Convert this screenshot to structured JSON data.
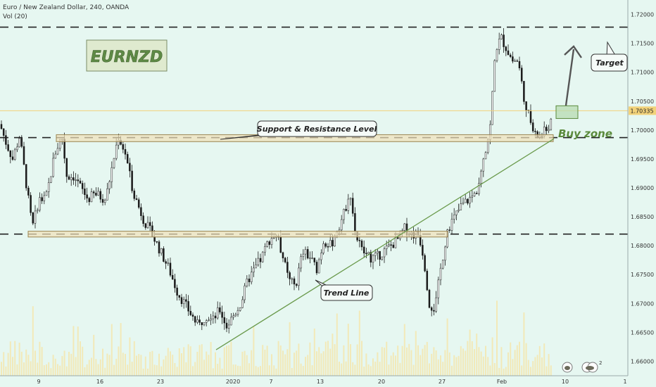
{
  "header": {
    "symbol_line": "Euro / New Zealand Dollar, 240, OANDA",
    "volume_line": "Vol (20)"
  },
  "labels": {
    "logo": "EURNZD",
    "support_resistance": "Support & Resistance Level",
    "trend_line": "Trend Line",
    "target": "Target",
    "buy_zone": "Buy zone",
    "price_tag": "1.70335"
  },
  "icons": [
    "snapshot-icon",
    "compare-icon"
  ],
  "icon_badge": "2",
  "colors": {
    "background": "#e6f7f1",
    "candle": "#1a1a1a",
    "volume": "#f2e9b8",
    "zone_fill": "#f0dfb8",
    "zone_stroke": "#9a8450",
    "trend": "#6a9a4c",
    "buy_zone": "#5a8a3c",
    "logo_text": "#5e8a45",
    "price_line": "#f2d27a"
  },
  "chart_data": {
    "type": "candlestick",
    "y_axis": {
      "range": [
        1.6575,
        1.7225
      ],
      "ticks": [
        "1.72000",
        "1.71500",
        "1.71000",
        "1.70500",
        "1.70000",
        "1.69500",
        "1.69000",
        "1.68500",
        "1.68000",
        "1.67500",
        "1.67000",
        "1.66500",
        "1.66000"
      ]
    },
    "x_axis": {
      "ticks": [
        "9",
        "16",
        "23",
        "2020",
        "7",
        "13",
        "20",
        "27",
        "Feb",
        "10",
        "1"
      ]
    },
    "levels": {
      "target": 1.7178,
      "upper_support": 1.6987,
      "lower_support": 1.682,
      "current_price": 1.70335
    },
    "zones": [
      {
        "name": "support-resistance-zone",
        "from": 1.698,
        "to": 1.6992
      },
      {
        "name": "lower-support-zone",
        "from": 1.6815,
        "to": 1.6825
      },
      {
        "name": "buy-zone-box",
        "from": 1.702,
        "to": 1.7042
      }
    ],
    "trend_line": {
      "from": 1.662,
      "to": 1.6985
    },
    "path": [
      [
        0,
        1.701
      ],
      [
        8,
        1.698
      ],
      [
        18,
        1.695
      ],
      [
        28,
        1.699
      ],
      [
        38,
        1.69
      ],
      [
        46,
        1.683
      ],
      [
        55,
        1.688
      ],
      [
        65,
        1.688
      ],
      [
        78,
        1.696
      ],
      [
        88,
        1.699
      ],
      [
        95,
        1.692
      ],
      [
        105,
        1.692
      ],
      [
        115,
        1.69
      ],
      [
        125,
        1.688
      ],
      [
        135,
        1.689
      ],
      [
        150,
        1.688
      ],
      [
        160,
        1.694
      ],
      [
        168,
        1.699
      ],
      [
        178,
        1.696
      ],
      [
        188,
        1.69
      ],
      [
        196,
        1.687
      ],
      [
        206,
        1.684
      ],
      [
        216,
        1.682
      ],
      [
        228,
        1.679
      ],
      [
        240,
        1.676
      ],
      [
        252,
        1.672
      ],
      [
        262,
        1.67
      ],
      [
        272,
        1.668
      ],
      [
        282,
        1.666
      ],
      [
        292,
        1.668
      ],
      [
        302,
        1.667
      ],
      [
        312,
        1.669
      ],
      [
        322,
        1.666
      ],
      [
        332,
        1.668
      ],
      [
        342,
        1.67
      ],
      [
        352,
        1.674
      ],
      [
        362,
        1.676
      ],
      [
        372,
        1.678
      ],
      [
        382,
        1.681
      ],
      [
        392,
        1.682
      ],
      [
        400,
        1.679
      ],
      [
        410,
        1.674
      ],
      [
        420,
        1.673
      ],
      [
        430,
        1.679
      ],
      [
        440,
        1.678
      ],
      [
        450,
        1.676
      ],
      [
        460,
        1.681
      ],
      [
        470,
        1.68
      ],
      [
        480,
        1.683
      ],
      [
        490,
        1.686
      ],
      [
        497,
        1.69
      ],
      [
        505,
        1.682
      ],
      [
        515,
        1.679
      ],
      [
        525,
        1.678
      ],
      [
        535,
        1.678
      ],
      [
        545,
        1.679
      ],
      [
        555,
        1.68
      ],
      [
        565,
        1.681
      ],
      [
        575,
        1.683
      ],
      [
        585,
        1.682
      ],
      [
        595,
        1.682
      ],
      [
        602,
        1.678
      ],
      [
        610,
        1.67
      ],
      [
        618,
        1.669
      ],
      [
        626,
        1.676
      ],
      [
        636,
        1.683
      ],
      [
        646,
        1.685
      ],
      [
        656,
        1.687
      ],
      [
        666,
        1.688
      ],
      [
        676,
        1.689
      ],
      [
        686,
        1.695
      ],
      [
        696,
        1.7
      ],
      [
        704,
        1.714
      ],
      [
        712,
        1.716
      ],
      [
        720,
        1.714
      ],
      [
        728,
        1.712
      ],
      [
        736,
        1.712
      ],
      [
        744,
        1.706
      ],
      [
        752,
        1.702
      ],
      [
        760,
        1.699
      ],
      [
        768,
        1.699
      ],
      [
        776,
        1.7
      ],
      [
        786,
        1.702
      ]
    ]
  }
}
